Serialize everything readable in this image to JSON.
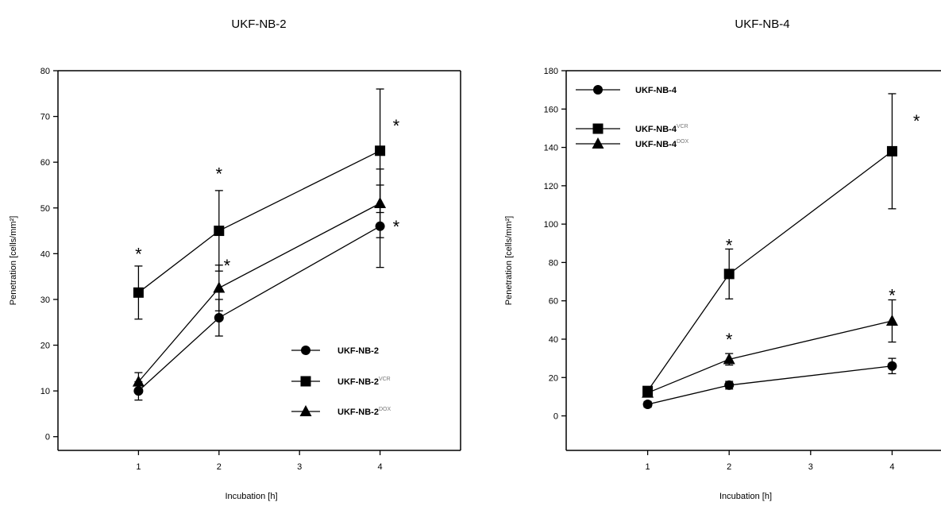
{
  "chart_data": [
    {
      "type": "line",
      "title": "UKF-NB-2",
      "xlabel": "Incubation [h]",
      "ylabel": "Penetration [cells/mm²]",
      "x_ticks": [
        1,
        2,
        3,
        4
      ],
      "xlim": [
        0,
        5
      ],
      "y_ticks": [
        0,
        10,
        20,
        30,
        40,
        50,
        60,
        70,
        80
      ],
      "ylim": [
        -3,
        80
      ],
      "legend_position": "bottom-right",
      "series": [
        {
          "name": "UKF-NB-2",
          "label_base": "UKF-NB-2",
          "label_sup": "",
          "marker": "circle",
          "x": [
            1,
            2,
            4
          ],
          "y": [
            10,
            26,
            46
          ],
          "err": [
            2,
            4,
            9
          ]
        },
        {
          "name": "UKF-NB-2VCR",
          "label_base": "UKF-NB-2",
          "label_sup": "VCR",
          "marker": "square",
          "x": [
            1,
            2,
            4
          ],
          "y": [
            31.5,
            45,
            62.5
          ],
          "err": [
            5.8,
            8.8,
            13.5
          ]
        },
        {
          "name": "UKF-NB-2DOX",
          "label_base": "UKF-NB-2",
          "label_sup": "DOX",
          "marker": "triangle",
          "x": [
            1,
            2,
            4
          ],
          "y": [
            12,
            32.5,
            51
          ],
          "err": [
            2,
            5,
            7.5
          ]
        }
      ],
      "annotations": [
        {
          "text": "*",
          "x": 1,
          "y": 40
        },
        {
          "text": "*",
          "x": 2,
          "y": 57.5
        },
        {
          "text": "*",
          "x": 2.1,
          "y": 37.5
        },
        {
          "text": "*",
          "x": 4.2,
          "y": 68
        },
        {
          "text": "*",
          "x": 4.2,
          "y": 46
        }
      ]
    },
    {
      "type": "line",
      "title": "UKF-NB-4",
      "xlabel": "Incubation [h]",
      "ylabel": "Penetration [cells/mm²]",
      "x_ticks": [
        1,
        2,
        3,
        4
      ],
      "xlim": [
        0,
        4.6
      ],
      "y_ticks": [
        0,
        20,
        40,
        60,
        80,
        100,
        120,
        140,
        160,
        180
      ],
      "ylim": [
        -18,
        180
      ],
      "legend_position": "top-left",
      "series": [
        {
          "name": "UKF-NB-4",
          "label_base": "UKF-NB-4",
          "label_sup": "",
          "marker": "circle",
          "x": [
            1,
            2,
            4
          ],
          "y": [
            6,
            16,
            26
          ],
          "err": [
            1.5,
            2,
            4
          ]
        },
        {
          "name": "UKF-NB-4VCR",
          "label_base": "UKF-NB-4",
          "label_sup": "VCR",
          "marker": "square",
          "x": [
            1,
            2,
            4
          ],
          "y": [
            13,
            74,
            138
          ],
          "err": [
            2,
            13,
            30
          ]
        },
        {
          "name": "UKF-NB-4DOX",
          "label_base": "UKF-NB-4",
          "label_sup": "DOX",
          "marker": "triangle",
          "x": [
            1,
            2,
            4
          ],
          "y": [
            12,
            29.5,
            49.5
          ],
          "err": [
            1.5,
            3,
            11
          ]
        }
      ],
      "annotations": [
        {
          "text": "*",
          "x": 2,
          "y": 89
        },
        {
          "text": "*",
          "x": 2,
          "y": 40
        },
        {
          "text": "*",
          "x": 4,
          "y": 63
        },
        {
          "text": "*",
          "x": 4.3,
          "y": 154
        }
      ]
    }
  ]
}
